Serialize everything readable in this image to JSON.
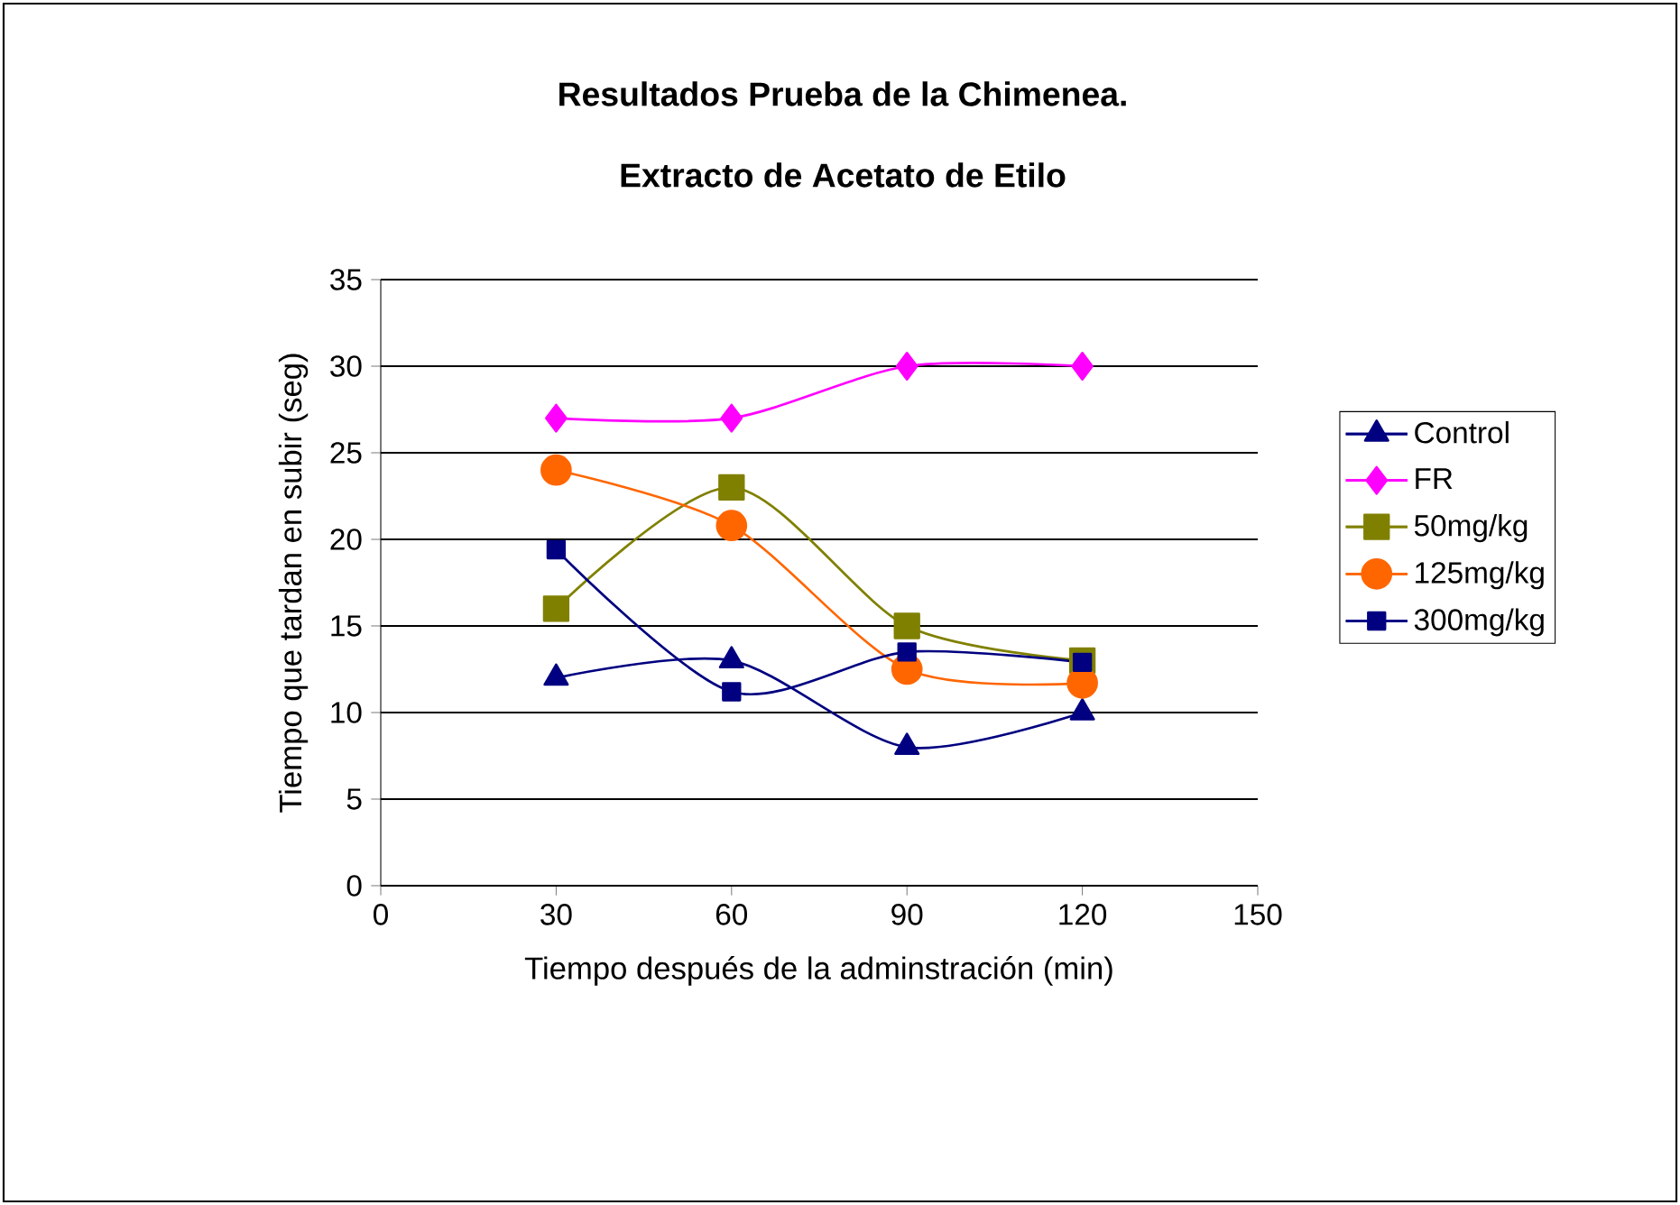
{
  "chart_data": {
    "type": "line",
    "title": "Resultados Prueba de la Chimenea.",
    "subtitle": "Extracto de Acetato de Etilo",
    "xlabel": "Tiempo después de la adminstración (min)",
    "ylabel": "Tiempo que tardan en subir (seg)",
    "x": [
      30,
      60,
      90,
      120
    ],
    "series": [
      {
        "name": "Control",
        "color": "#000080",
        "marker": "triangle",
        "values": [
          12,
          13,
          8,
          10
        ]
      },
      {
        "name": "FR",
        "color": "#ff00ff",
        "marker": "diamond",
        "values": [
          27,
          27,
          30,
          30
        ]
      },
      {
        "name": "50mg/kg",
        "color": "#808000",
        "marker": "square",
        "values": [
          16,
          23,
          15,
          13
        ]
      },
      {
        "name": "125mg/kg",
        "color": "#ff6600",
        "marker": "circle",
        "values": [
          24,
          20.8,
          12.5,
          11.7
        ]
      },
      {
        "name": "300mg/kg",
        "color": "#000080",
        "marker": "square",
        "values": [
          19.4,
          11.2,
          13.5,
          12.9
        ]
      }
    ],
    "xlim": [
      0,
      150
    ],
    "xticks": [
      0,
      30,
      60,
      90,
      120,
      150
    ],
    "ylim": [
      0,
      35
    ],
    "yticks": [
      0,
      5,
      10,
      15,
      20,
      25,
      30,
      35
    ],
    "grid": "y",
    "legend": "right"
  }
}
